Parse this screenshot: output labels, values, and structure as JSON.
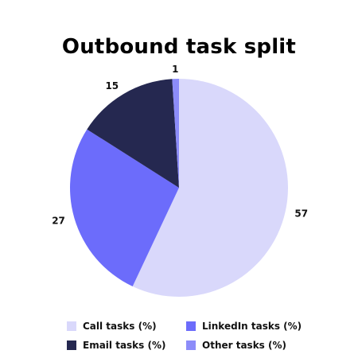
{
  "chart_data": {
    "type": "pie",
    "title": "Outbound task split",
    "slices": [
      {
        "name": "Call tasks (%)",
        "value": 57,
        "label": "57",
        "color": "#d9d8fb"
      },
      {
        "name": "LinkedIn tasks (%)",
        "value": 27,
        "label": "27",
        "color": "#6c6cfb"
      },
      {
        "name": "Email tasks (%)",
        "value": 15,
        "label": "15",
        "color": "#252850"
      },
      {
        "name": "Other tasks (%)",
        "value": 1,
        "label": "1",
        "color": "#8c8cf9"
      }
    ],
    "start_angle_deg": 90,
    "direction": "clockwise",
    "legend_position": "bottom"
  },
  "legend": {
    "items": [
      {
        "label": "Call tasks (%)",
        "color": "#d9d8fb"
      },
      {
        "label": "LinkedIn tasks (%)",
        "color": "#6c6cfb"
      },
      {
        "label": "Email tasks (%)",
        "color": "#252850"
      },
      {
        "label": "Other tasks (%)",
        "color": "#8c8cf9"
      }
    ]
  }
}
